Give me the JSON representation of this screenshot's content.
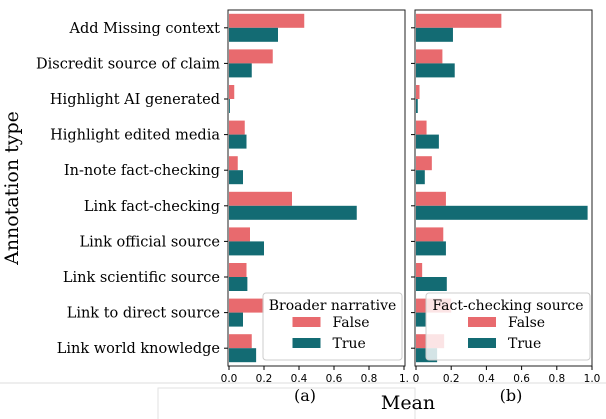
{
  "chart_data": [
    {
      "type": "bar",
      "orientation": "horizontal",
      "panel_label": "(a)",
      "ylabel": "Annotation type",
      "xlabel": "Mean",
      "xlim": [
        0,
        1.0
      ],
      "xticks": [
        "0.0",
        "0.2",
        "0.4",
        "0.6",
        "0.8",
        "1."
      ],
      "grid": false,
      "categories": [
        "Add Missing context",
        "Discredit source of claim",
        "Highlight AI generated",
        "Highlight edited media",
        "In-note fact-checking",
        "Link fact-checking",
        "Link official source",
        "Link scientific source",
        "Link to direct source",
        "Link world knowledge"
      ],
      "legend": {
        "title": "Broader narrative",
        "placement": "lower-right"
      },
      "series": [
        {
          "name": "False",
          "color": "#E86A6E",
          "values": [
            0.43,
            0.25,
            0.03,
            0.09,
            0.05,
            0.36,
            0.12,
            0.1,
            0.2,
            0.13
          ]
        },
        {
          "name": "True",
          "color": "#136B73",
          "values": [
            0.28,
            0.13,
            0.005,
            0.1,
            0.08,
            0.73,
            0.2,
            0.105,
            0.08,
            0.155
          ]
        }
      ]
    },
    {
      "type": "bar",
      "orientation": "horizontal",
      "panel_label": "(b)",
      "xlim": [
        0,
        1.0
      ],
      "xticks": [
        "0",
        "0.2",
        "0.4",
        "0.6",
        "0.8",
        "1.0"
      ],
      "grid": false,
      "categories": [
        "Add Missing context",
        "Discredit source of claim",
        "Highlight AI generated",
        "Highlight edited media",
        "In-note fact-checking",
        "Link fact-checking",
        "Link official source",
        "Link scientific source",
        "Link to direct source",
        "Link world knowledge"
      ],
      "legend": {
        "title": "Fact-checking source",
        "placement": "lower-right"
      },
      "series": [
        {
          "name": "False",
          "color": "#E86A6E",
          "values": [
            0.485,
            0.15,
            0.02,
            0.06,
            0.09,
            0.17,
            0.155,
            0.035,
            0.2,
            0.16
          ]
        },
        {
          "name": "True",
          "color": "#136B73",
          "values": [
            0.21,
            0.22,
            0.01,
            0.13,
            0.05,
            0.975,
            0.17,
            0.175,
            0.055,
            0.12
          ]
        }
      ]
    }
  ]
}
